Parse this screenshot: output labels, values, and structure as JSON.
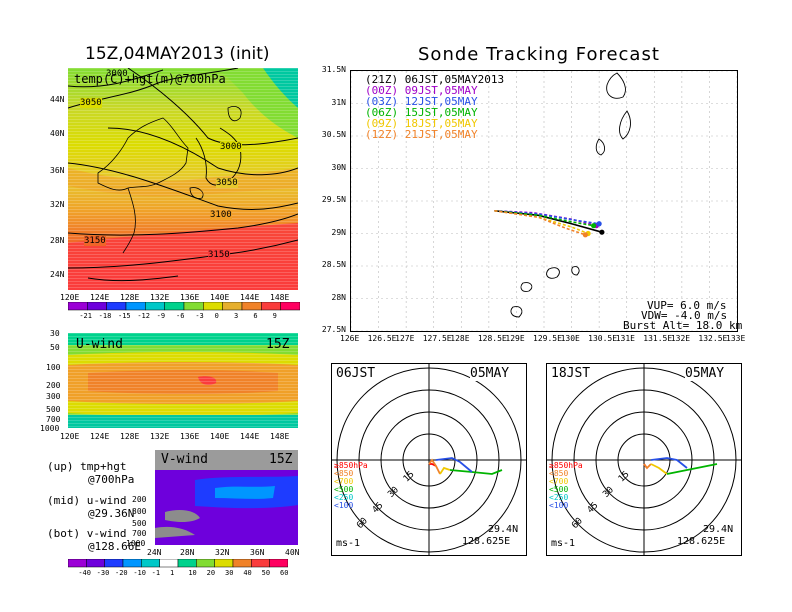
{
  "left_title": "15Z,04MAY2013 (init)",
  "right_title": "Sonde Tracking Forecast",
  "map1": {
    "label": "temp(C)+hgt(m)@700hPa",
    "lat_labels": [
      "44N",
      "40N",
      "36N",
      "32N",
      "28N",
      "24N"
    ],
    "lon_labels": [
      "120E",
      "124E",
      "128E",
      "132E",
      "136E",
      "140E",
      "144E",
      "148E"
    ],
    "contours": [
      "3000",
      "3050",
      "3000",
      "3050",
      "3100",
      "3150",
      "3150"
    ],
    "colorbar_labels": [
      "-21",
      "-18",
      "-15",
      "-12",
      "-9",
      "-6",
      "-3",
      "0",
      "3",
      "6",
      "9"
    ],
    "colorbar_colors": [
      "#9b00d6",
      "#6e00dc",
      "#1e3cff",
      "#0096ff",
      "#00c8c8",
      "#00d28c",
      "#82dc32",
      "#dcdc00",
      "#e6af2d",
      "#f08228",
      "#fa3c3c",
      "#ff0060"
    ]
  },
  "uwind": {
    "label": "U-wind",
    "time": "15Z",
    "y_labels": [
      "30",
      "50",
      "100",
      "200",
      "300",
      "500",
      "700",
      "1000"
    ],
    "x_labels": [
      "120E",
      "124E",
      "128E",
      "132E",
      "136E",
      "140E",
      "144E",
      "148E"
    ]
  },
  "vwind": {
    "label": "V-wind",
    "time": "15Z",
    "y_labels": [
      "200",
      "300",
      "500",
      "700",
      "1000"
    ],
    "x_labels": [
      "24N",
      "28N",
      "32N",
      "36N",
      "40N"
    ]
  },
  "notes": {
    "up1": "(up) tmp+hgt",
    "up2": "@700hPa",
    "mid1": "(mid) u-wind",
    "mid2": "@29.36N",
    "bot1": "(bot) v-wind",
    "bot2": "@128.66E"
  },
  "bottom_colorbar": {
    "labels": [
      "-40",
      "-30",
      "-20",
      "-10",
      "-1",
      "1",
      "10",
      "20",
      "30",
      "40",
      "50",
      "60"
    ],
    "colors": [
      "#9b00d6",
      "#6e00dc",
      "#1e3cff",
      "#0096ff",
      "#00c8c8",
      "#ffffff",
      "#00d28c",
      "#82dc32",
      "#dcdc00",
      "#f08228",
      "#fa3c3c",
      "#ff0060"
    ]
  },
  "track_map": {
    "lat_labels": [
      "31.5N",
      "31N",
      "30.5N",
      "30N",
      "29.5N",
      "29N",
      "28.5N",
      "28N",
      "27.5N"
    ],
    "lon_labels": [
      "126E",
      "126.5E",
      "127E",
      "127.5E",
      "128E",
      "128.5E",
      "129E",
      "129.5E",
      "130E",
      "130.5E",
      "131E",
      "131.5E",
      "132E",
      "132.5E",
      "133E"
    ],
    "legend": [
      {
        "text": "(21Z) 06JST,05MAY2013",
        "color": "#000000"
      },
      {
        "text": "(00Z) 09JST,05MAY",
        "color": "#a000c8"
      },
      {
        "text": "(03Z) 12JST,05MAY",
        "color": "#2850e6"
      },
      {
        "text": "(06Z) 15JST,05MAY",
        "color": "#00b400"
      },
      {
        "text": "(09Z) 18JST,05MAY",
        "color": "#f0c800"
      },
      {
        "text": "(12Z) 21JST,05MAY",
        "color": "#f08228"
      }
    ],
    "info": [
      "VUP= 6.0 m/s",
      "VDW= -4.0 m/s",
      "Burst Alt= 18.0 km"
    ]
  },
  "chart_data": {
    "type": "line",
    "title": "Sonde Tracking Forecast",
    "xlim": [
      126,
      133
    ],
    "ylim": [
      27.5,
      31.5
    ],
    "series": [
      {
        "name": "(21Z) 06JST,05MAY2013",
        "color": "#000000",
        "x": [
          128.6,
          129.4,
          130.0,
          130.55
        ],
        "y": [
          29.35,
          29.28,
          29.15,
          29.02
        ]
      },
      {
        "name": "(00Z) 09JST,05MAY",
        "color": "#a000c8",
        "x": [
          128.6,
          129.3,
          130.0,
          130.45
        ],
        "y": [
          29.35,
          29.32,
          29.22,
          29.12
        ]
      },
      {
        "name": "(03Z) 12JST,05MAY",
        "color": "#2850e6",
        "x": [
          128.6,
          129.4,
          130.1,
          130.5
        ],
        "y": [
          29.35,
          29.3,
          29.2,
          29.15
        ]
      },
      {
        "name": "(06Z) 15JST,05MAY",
        "color": "#00b400",
        "x": [
          128.6,
          129.4,
          130.0,
          130.4
        ],
        "y": [
          29.35,
          29.28,
          29.18,
          29.12
        ]
      },
      {
        "name": "(09Z) 18JST,05MAY",
        "color": "#f0c800",
        "x": [
          128.6,
          129.4,
          130.0,
          130.3
        ],
        "y": [
          29.35,
          29.25,
          29.1,
          29.0
        ]
      },
      {
        "name": "(12Z) 21JST,05MAY",
        "color": "#f08228",
        "x": [
          128.6,
          129.4,
          129.9,
          130.25
        ],
        "y": [
          29.35,
          29.25,
          29.08,
          28.98
        ]
      }
    ]
  },
  "hodo_left": {
    "time": "06JST",
    "date": "05MAY",
    "rings": [
      "15",
      "30",
      "45",
      "60"
    ],
    "levels": [
      {
        "text": "≥850hPa",
        "color": "#ff0000"
      },
      {
        "text": "<850",
        "color": "#f08228"
      },
      {
        "text": "<700",
        "color": "#f0c800"
      },
      {
        "text": "<500",
        "color": "#00b400"
      },
      {
        "text": "<250",
        "color": "#00c8c8"
      },
      {
        "text": "<100",
        "color": "#2850e6"
      }
    ],
    "unit": "ms-1",
    "lat": "29.4N",
    "lon": "128.625E"
  },
  "hodo_right": {
    "time": "18JST",
    "date": "05MAY",
    "rings": [
      "15",
      "30",
      "45",
      "60"
    ],
    "levels": [
      {
        "text": "≥850hPa",
        "color": "#ff0000"
      },
      {
        "text": "<850",
        "color": "#f08228"
      },
      {
        "text": "<700",
        "color": "#f0c800"
      },
      {
        "text": "<500",
        "color": "#00b400"
      },
      {
        "text": "<250",
        "color": "#00c8c8"
      },
      {
        "text": "<100",
        "color": "#2850e6"
      }
    ],
    "unit": "ms-1",
    "lat": "29.4N",
    "lon": "128.625E"
  }
}
